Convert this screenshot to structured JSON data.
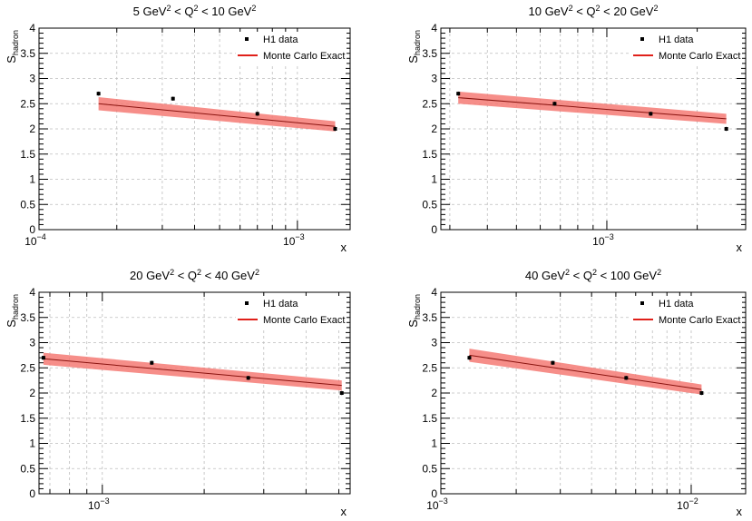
{
  "chart_data": [
    {
      "type": "scatter",
      "title": {
        "prefix": "5 GeV",
        "mid": " < Q",
        "mid2": " < 10 GeV",
        "sup": "2"
      },
      "xlabel": "x",
      "ylabel": {
        "main": "S",
        "sub": "hadron"
      },
      "xscale": "log",
      "xlim": [
        0.0001,
        0.0016
      ],
      "ylim": [
        0,
        4
      ],
      "grid": true,
      "legend_position": "top-right",
      "legend": {
        "data_label": "H1 data",
        "mc_label": "Monte Carlo Exact"
      },
      "xtick_labels": [
        {
          "value": 0.0001,
          "base": "10",
          "exp": "−4"
        },
        {
          "value": 0.001,
          "base": "10",
          "exp": "−3"
        }
      ],
      "ytick_labels": [
        "0",
        "0.5",
        "1",
        "1.5",
        "2",
        "2.5",
        "3",
        "3.5",
        "4"
      ],
      "series": [
        {
          "name": "H1 data",
          "x": [
            0.00017,
            0.00033,
            0.0007,
            0.0014
          ],
          "y": [
            2.7,
            2.6,
            2.3,
            2.0
          ],
          "yerr": [
            0.04,
            0.04,
            0.04,
            0.04
          ]
        },
        {
          "name": "Monte Carlo Exact",
          "x": [
            0.00017,
            0.0014
          ],
          "y": [
            2.5,
            2.05
          ],
          "band_upper": [
            2.63,
            2.15
          ],
          "band_lower": [
            2.37,
            1.95
          ]
        }
      ]
    },
    {
      "type": "scatter",
      "title": {
        "prefix": "10 GeV",
        "mid": " < Q",
        "mid2": " < 20 GeV",
        "sup": "2"
      },
      "xlabel": "x",
      "ylabel": {
        "main": "S",
        "sub": "hadron"
      },
      "xscale": "log",
      "xlim": [
        0.00028,
        0.0029
      ],
      "ylim": [
        0,
        4
      ],
      "grid": true,
      "legend_position": "top-right",
      "legend": {
        "data_label": "H1 data",
        "mc_label": "Monte Carlo Exact"
      },
      "xtick_labels": [
        {
          "value": 0.001,
          "base": "10",
          "exp": "−3"
        }
      ],
      "ytick_labels": [
        "0",
        "0.5",
        "1",
        "1.5",
        "2",
        "2.5",
        "3",
        "3.5",
        "4"
      ],
      "series": [
        {
          "name": "H1 data",
          "x": [
            0.00032,
            0.00067,
            0.0014,
            0.0025
          ],
          "y": [
            2.7,
            2.5,
            2.3,
            2.0
          ],
          "yerr": [
            0.04,
            0.04,
            0.04,
            0.04
          ]
        },
        {
          "name": "Monte Carlo Exact",
          "x": [
            0.00032,
            0.0025
          ],
          "y": [
            2.62,
            2.2
          ],
          "band_upper": [
            2.74,
            2.3
          ],
          "band_lower": [
            2.5,
            2.1
          ]
        }
      ]
    },
    {
      "type": "scatter",
      "title": {
        "prefix": "20 GeV",
        "mid": " < Q",
        "mid2": " < 40 GeV",
        "sup": "2"
      },
      "xlabel": "x",
      "ylabel": {
        "main": "S",
        "sub": "hadron"
      },
      "xscale": "log",
      "xlim": [
        0.00065,
        0.0054
      ],
      "ylim": [
        0,
        4
      ],
      "grid": true,
      "legend_position": "top-right",
      "legend": {
        "data_label": "H1 data",
        "mc_label": "Monte Carlo Exact"
      },
      "xtick_labels": [
        {
          "value": 0.001,
          "base": "10",
          "exp": "−3"
        }
      ],
      "ytick_labels": [
        "0",
        "0.5",
        "1",
        "1.5",
        "2",
        "2.5",
        "3",
        "3.5",
        "4"
      ],
      "series": [
        {
          "name": "H1 data",
          "x": [
            0.00067,
            0.0014,
            0.0027,
            0.0051
          ],
          "y": [
            2.7,
            2.6,
            2.3,
            2.0
          ],
          "yerr": [
            0.04,
            0.04,
            0.04,
            0.04
          ]
        },
        {
          "name": "Monte Carlo Exact",
          "x": [
            0.00067,
            0.0051
          ],
          "y": [
            2.68,
            2.15
          ],
          "band_upper": [
            2.8,
            2.25
          ],
          "band_lower": [
            2.56,
            2.05
          ]
        }
      ]
    },
    {
      "type": "scatter",
      "title": {
        "prefix": "40 GeV",
        "mid": " < Q",
        "mid2": " < 100 GeV",
        "sup": "2"
      },
      "xlabel": "x",
      "ylabel": {
        "main": "S",
        "sub": "hadron"
      },
      "xscale": "log",
      "xlim": [
        0.001,
        0.0165
      ],
      "ylim": [
        0,
        4
      ],
      "grid": true,
      "legend_position": "top-right",
      "legend": {
        "data_label": "H1 data",
        "mc_label": "Monte Carlo Exact"
      },
      "xtick_labels": [
        {
          "value": 0.001,
          "base": "10",
          "exp": "−3"
        },
        {
          "value": 0.01,
          "base": "10",
          "exp": "−2"
        }
      ],
      "ytick_labels": [
        "0",
        "0.5",
        "1",
        "1.5",
        "2",
        "2.5",
        "3",
        "3.5",
        "4"
      ],
      "series": [
        {
          "name": "H1 data",
          "x": [
            0.0013,
            0.0028,
            0.0055,
            0.011
          ],
          "y": [
            2.7,
            2.6,
            2.3,
            2.0
          ],
          "yerr": [
            0.04,
            0.04,
            0.04,
            0.04
          ]
        },
        {
          "name": "Monte Carlo Exact",
          "x": [
            0.0013,
            0.011
          ],
          "y": [
            2.75,
            2.07
          ],
          "band_upper": [
            2.88,
            2.17
          ],
          "band_lower": [
            2.62,
            1.97
          ]
        }
      ]
    }
  ],
  "colors": {
    "data_marker": "#000000",
    "mc_line": "#e0201a",
    "mc_band": "#f47a74",
    "grid": "#bdbdbd",
    "axis": "#000000"
  }
}
